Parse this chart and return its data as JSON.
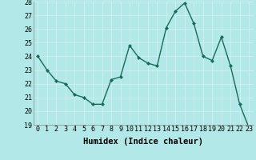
{
  "x": [
    0,
    1,
    2,
    3,
    4,
    5,
    6,
    7,
    8,
    9,
    10,
    11,
    12,
    13,
    14,
    15,
    16,
    17,
    18,
    19,
    20,
    21,
    22,
    23
  ],
  "y": [
    24.0,
    23.0,
    22.2,
    22.0,
    21.2,
    21.0,
    20.5,
    20.5,
    22.3,
    22.5,
    24.8,
    23.9,
    23.5,
    23.3,
    26.1,
    27.3,
    27.9,
    26.4,
    24.0,
    23.7,
    25.4,
    23.3,
    20.5,
    18.8
  ],
  "line_color": "#1a6b5a",
  "marker": "D",
  "marker_size": 2.0,
  "bg_color": "#b2e8e8",
  "grid_color": "#d0f0f0",
  "xlabel": "Humidex (Indice chaleur)",
  "ylim": [
    19,
    28
  ],
  "xlim": [
    -0.5,
    23.5
  ],
  "yticks": [
    19,
    20,
    21,
    22,
    23,
    24,
    25,
    26,
    27,
    28
  ],
  "xticks": [
    0,
    1,
    2,
    3,
    4,
    5,
    6,
    7,
    8,
    9,
    10,
    11,
    12,
    13,
    14,
    15,
    16,
    17,
    18,
    19,
    20,
    21,
    22,
    23
  ],
  "tick_fontsize": 6.0,
  "xlabel_fontsize": 7.5,
  "line_width": 1.0
}
